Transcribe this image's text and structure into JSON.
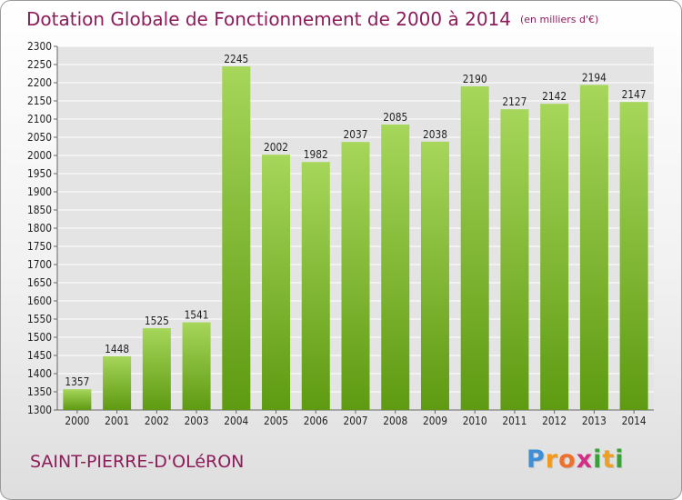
{
  "title": "Dotation Globale de Fonctionnement de 2000 à 2014",
  "unit_label": "(en milliers d'€)",
  "commune": "SAINT-PIERRE-D'OLéRON",
  "brand": {
    "letters": [
      "P",
      "r",
      "o",
      "x",
      "i",
      "t",
      "i"
    ],
    "colors": [
      "#3f8fd6",
      "#f39a1e",
      "#ef6f2b",
      "#d42d86",
      "#3aa03a",
      "#f0a020",
      "#3aa03a"
    ]
  },
  "colors": {
    "bar_top": "#a6d65a",
    "bar_bottom": "#5e9a12",
    "grid": "#ffffff",
    "text": "#222222",
    "accent": "#8c1d5a"
  },
  "chart_data": {
    "type": "bar",
    "title": "Dotation Globale de Fonctionnement de 2000 à 2014",
    "categories": [
      "2000",
      "2001",
      "2002",
      "2003",
      "2004",
      "2005",
      "2006",
      "2007",
      "2008",
      "2009",
      "2010",
      "2011",
      "2012",
      "2013",
      "2014"
    ],
    "values": [
      1357,
      1448,
      1525,
      1541,
      2245,
      2002,
      1982,
      2037,
      2085,
      2038,
      2190,
      2127,
      2142,
      2194,
      2147
    ],
    "ylim": [
      1300,
      2300
    ],
    "ytick_step": 50,
    "grid": true,
    "data_labels": true,
    "xlabel": "",
    "ylabel": ""
  }
}
